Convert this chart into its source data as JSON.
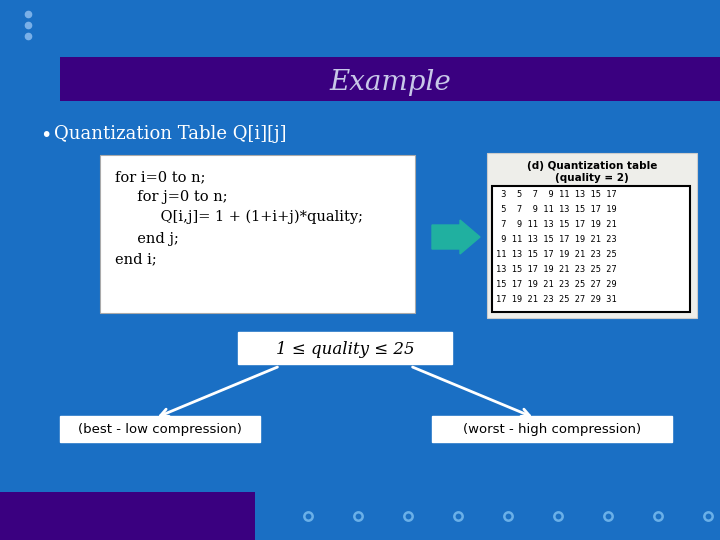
{
  "bg_color": "#1a6fc4",
  "title_bar_color": "#3a0080",
  "title_text": "Example",
  "title_text_color": "#c8c8e8",
  "bullet_text": "Quantization Table Q[i][j]",
  "bullet_text_color": "#ffffff",
  "code_lines": [
    "for i=0 to n;",
    "  for j=0 to n;",
    "    Q[i,j]= 1 + (1+i+j)*quality;",
    "  end j;",
    "end i;"
  ],
  "table_title_line1": "(d) Quantization table",
  "table_title_line2": "(quality = 2)",
  "table_rows": [
    " 3  5  7  9 11 13 15 17",
    " 5  7  9 11 13 15 17 19",
    " 7  9 11 13 15 17 19 21",
    " 9 11 13 15 17 19 21 23",
    "11 13 15 17 19 21 23 25",
    "13 15 17 19 21 23 25 27",
    "15 17 19 21 23 25 27 29",
    "17 19 21 23 25 27 29 31"
  ],
  "quality_text": "1 ≤ quality ≤ 25",
  "left_label": "(best - low compression)",
  "right_label": "(worst - high compression)",
  "top_dots_color": "#7ab0e8",
  "arrow_color": "#20b0a0",
  "bottom_bar_color": "#3a0080",
  "dot_outline_color": "#6ab0e8"
}
